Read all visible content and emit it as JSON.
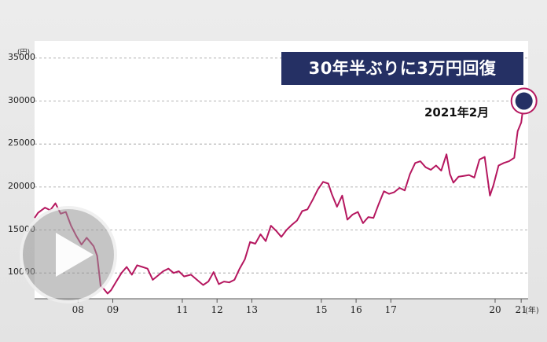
{
  "chart_data": {
    "type": "line",
    "title": "30年半ぶりに3万円回復",
    "y_unit": "(円)",
    "x_unit": "(年)",
    "ylim": [
      7000,
      37000
    ],
    "y_ticks": [
      {
        "value": 35000,
        "label": "35000"
      },
      {
        "value": 30000,
        "label": "30000"
      },
      {
        "value": 25000,
        "label": "25000"
      },
      {
        "value": 20000,
        "label": "20000"
      },
      {
        "value": 15000,
        "label": "15000"
      },
      {
        "value": 10000,
        "label": "10000"
      }
    ],
    "xlim": [
      2007.0,
      2021.2
    ],
    "x_ticks": [
      {
        "value": 2008.25,
        "label": "08"
      },
      {
        "value": 2009.25,
        "label": "09"
      },
      {
        "value": 2011.25,
        "label": "11"
      },
      {
        "value": 2012.25,
        "label": "12"
      },
      {
        "value": 2013.25,
        "label": "13"
      },
      {
        "value": 2015.25,
        "label": "15"
      },
      {
        "value": 2016.25,
        "label": "16"
      },
      {
        "value": 2017.25,
        "label": "17"
      },
      {
        "value": 2020.25,
        "label": "20"
      },
      {
        "value": 2021.0,
        "label": "21"
      }
    ],
    "grid": true,
    "line_color": "#b5175f",
    "series": [
      {
        "x": [
          2007.0,
          2007.1,
          2007.3,
          2007.45,
          2007.6,
          2007.75,
          2007.9,
          2008.05,
          2008.2,
          2008.35,
          2008.5,
          2008.6,
          2008.7,
          2008.8,
          2008.9,
          2009.0,
          2009.1,
          2009.2,
          2009.35,
          2009.5,
          2009.65,
          2009.8,
          2009.95,
          2010.1,
          2010.25,
          2010.4,
          2010.55,
          2010.7,
          2010.85,
          2011.0,
          2011.15,
          2011.3,
          2011.5,
          2011.7,
          2011.85,
          2012.0,
          2012.15,
          2012.3,
          2012.45,
          2012.6,
          2012.75,
          2012.9,
          2013.05,
          2013.2,
          2013.35,
          2013.5,
          2013.65,
          2013.8,
          2013.95,
          2014.1,
          2014.25,
          2014.4,
          2014.55,
          2014.7,
          2014.85,
          2015.0,
          2015.15,
          2015.3,
          2015.45,
          2015.55,
          2015.7,
          2015.85,
          2016.0,
          2016.15,
          2016.3,
          2016.45,
          2016.6,
          2016.75,
          2016.9,
          2017.05,
          2017.2,
          2017.35,
          2017.5,
          2017.65,
          2017.8,
          2017.95,
          2018.1,
          2018.25,
          2018.4,
          2018.55,
          2018.7,
          2018.85,
          2018.95,
          2019.05,
          2019.2,
          2019.35,
          2019.5,
          2019.65,
          2019.8,
          2019.95,
          2020.1,
          2020.2,
          2020.35,
          2020.5,
          2020.65,
          2020.8,
          2020.9,
          2021.0,
          2021.08
        ],
        "y": [
          16400,
          17000,
          17600,
          17300,
          18100,
          16900,
          17100,
          15500,
          14300,
          13300,
          14100,
          13600,
          13100,
          12000,
          8500,
          8100,
          7600,
          8000,
          9000,
          10000,
          10700,
          9800,
          10900,
          10700,
          10500,
          9200,
          9700,
          10200,
          10500,
          10000,
          10200,
          9600,
          9800,
          9100,
          8600,
          9000,
          10100,
          8700,
          9000,
          8900,
          9200,
          10500,
          11600,
          13600,
          13400,
          14500,
          13700,
          15500,
          14900,
          14200,
          15000,
          15600,
          16100,
          17200,
          17400,
          18500,
          19700,
          20600,
          20400,
          19200,
          17700,
          19000,
          16200,
          16800,
          17100,
          15800,
          16500,
          16400,
          18000,
          19500,
          19200,
          19400,
          19900,
          19600,
          21500,
          22800,
          23000,
          22300,
          22000,
          22500,
          21900,
          23800,
          21500,
          20500,
          21200,
          21300,
          21400,
          21100,
          23200,
          23500,
          19000,
          20200,
          22500,
          22800,
          23000,
          23400,
          26500,
          27500,
          30000
        ]
      }
    ],
    "annotations": [
      {
        "text": "2021年2月",
        "x": 2021.08,
        "y": 30000
      }
    ]
  }
}
